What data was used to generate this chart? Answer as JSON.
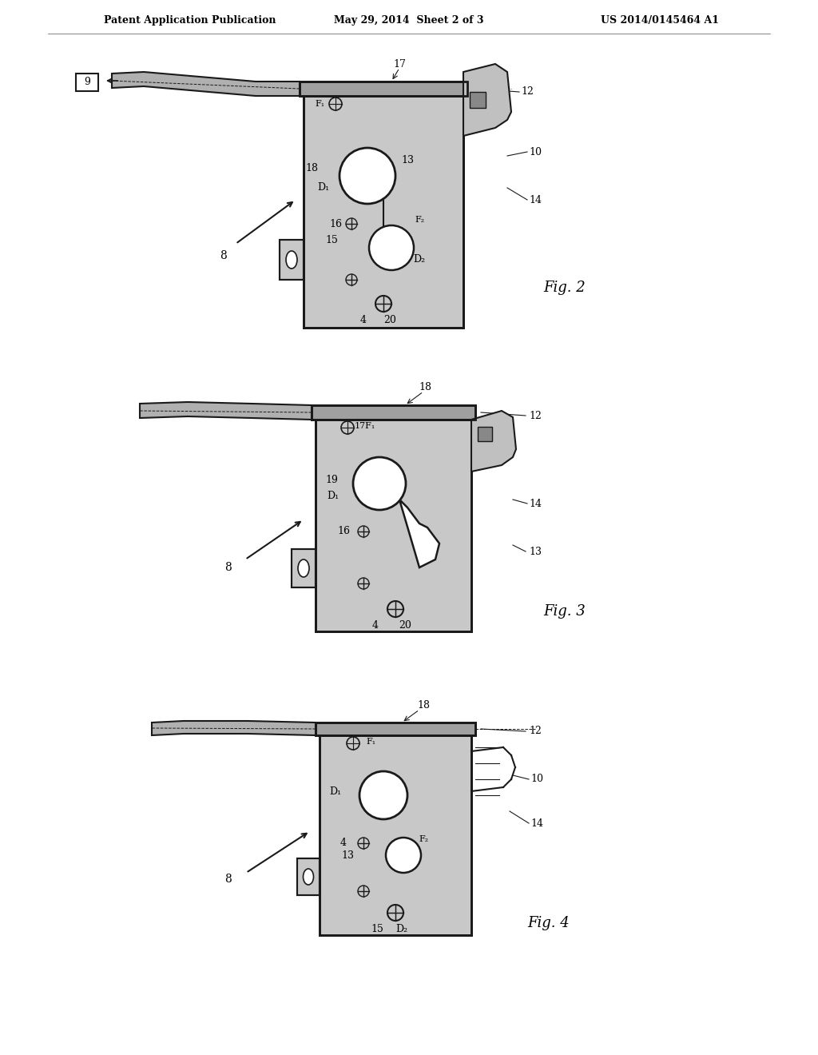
{
  "background_color": "#ffffff",
  "header_left": "Patent Application Publication",
  "header_center": "May 29, 2014  Sheet 2 of 3",
  "header_right": "US 2014/0145464 A1",
  "fig2_label": "Fig. 2",
  "fig3_label": "Fig. 3",
  "fig4_label": "Fig. 4",
  "line_color": "#1a1a1a",
  "line_width": 1.5,
  "thin_line": 0.8,
  "text_color": "#000000",
  "font_size_header": 9,
  "font_size_label": 10,
  "font_size_fig": 13,
  "font_size_ref": 9
}
